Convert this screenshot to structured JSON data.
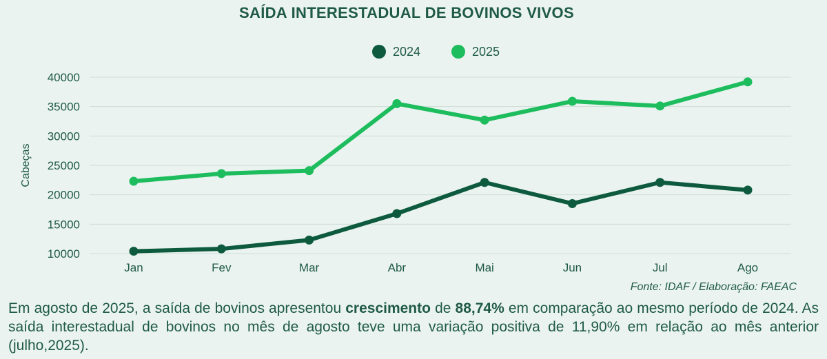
{
  "chart_data": {
    "type": "line",
    "title": "SAÍDA INTERESTADUAL DE BOVINOS VIVOS",
    "ylabel": "Cabeças",
    "xlabel": "",
    "categories": [
      "Jan",
      "Fev",
      "Mar",
      "Abr",
      "Mai",
      "Jun",
      "Jul",
      "Ago"
    ],
    "series": [
      {
        "name": "2024",
        "color": "#0d5a3f",
        "values": [
          10400,
          10800,
          12300,
          16800,
          22100,
          18500,
          22100,
          20800
        ]
      },
      {
        "name": "2025",
        "color": "#1dbd5e",
        "values": [
          22300,
          23600,
          24100,
          35500,
          32700,
          35900,
          35100,
          39200
        ]
      }
    ],
    "ylim": [
      10000,
      40000
    ],
    "yticks": [
      10000,
      15000,
      20000,
      25000,
      30000,
      35000,
      40000
    ],
    "grid": true,
    "legend_position": "top-center"
  },
  "source": "Fonte: IDAF / Elaboração: FAEAC",
  "caption": {
    "p1": "Em agosto de 2025, a saída de bovinos apresentou ",
    "b1": "crescimento",
    "p2": " de ",
    "b2": "88,74%",
    "p3": " em comparação ao mesmo período de 2024. As saída interestadual de bovinos no mês de agosto teve uma variação positiva de 11,90% em relação ao mês anterior (julho,2025)."
  }
}
